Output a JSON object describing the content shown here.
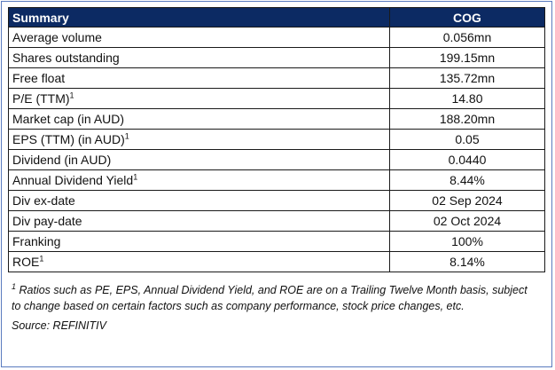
{
  "table": {
    "header": {
      "label": "Summary",
      "ticker": "COG"
    },
    "rows": [
      {
        "label": "Average volume",
        "note": "",
        "value": "0.056mn"
      },
      {
        "label": "Shares outstanding",
        "note": "",
        "value": "199.15mn"
      },
      {
        "label": "Free float",
        "note": "",
        "value": "135.72mn"
      },
      {
        "label": "P/E (TTM)",
        "note": "1",
        "value": "14.80"
      },
      {
        "label": "Market cap (in AUD)",
        "note": "",
        "value": "188.20mn"
      },
      {
        "label": "EPS (TTM) (in AUD)",
        "note": "1",
        "value": "0.05"
      },
      {
        "label": "Dividend (in AUD)",
        "note": "",
        "value": "0.0440"
      },
      {
        "label": "Annual Dividend Yield",
        "note": "1",
        "value": "8.44%"
      },
      {
        "label": "Div ex-date",
        "note": "",
        "value": "02 Sep 2024"
      },
      {
        "label": "Div pay-date",
        "note": "",
        "value": "02 Oct 2024"
      },
      {
        "label": "Franking",
        "note": "",
        "value": "100%"
      },
      {
        "label": "ROE",
        "note": "1",
        "value": "8.14%"
      }
    ]
  },
  "footnote": {
    "marker": "1",
    "text": "Ratios such as PE, EPS, Annual Dividend Yield, and ROE are on a Trailing Twelve Month basis, subject to change based on certain factors such as company performance, stock price changes, etc."
  },
  "source": "Source: REFINITIV",
  "colors": {
    "header_bg": "#0c2a63",
    "frame_border": "#5a7bbf"
  }
}
